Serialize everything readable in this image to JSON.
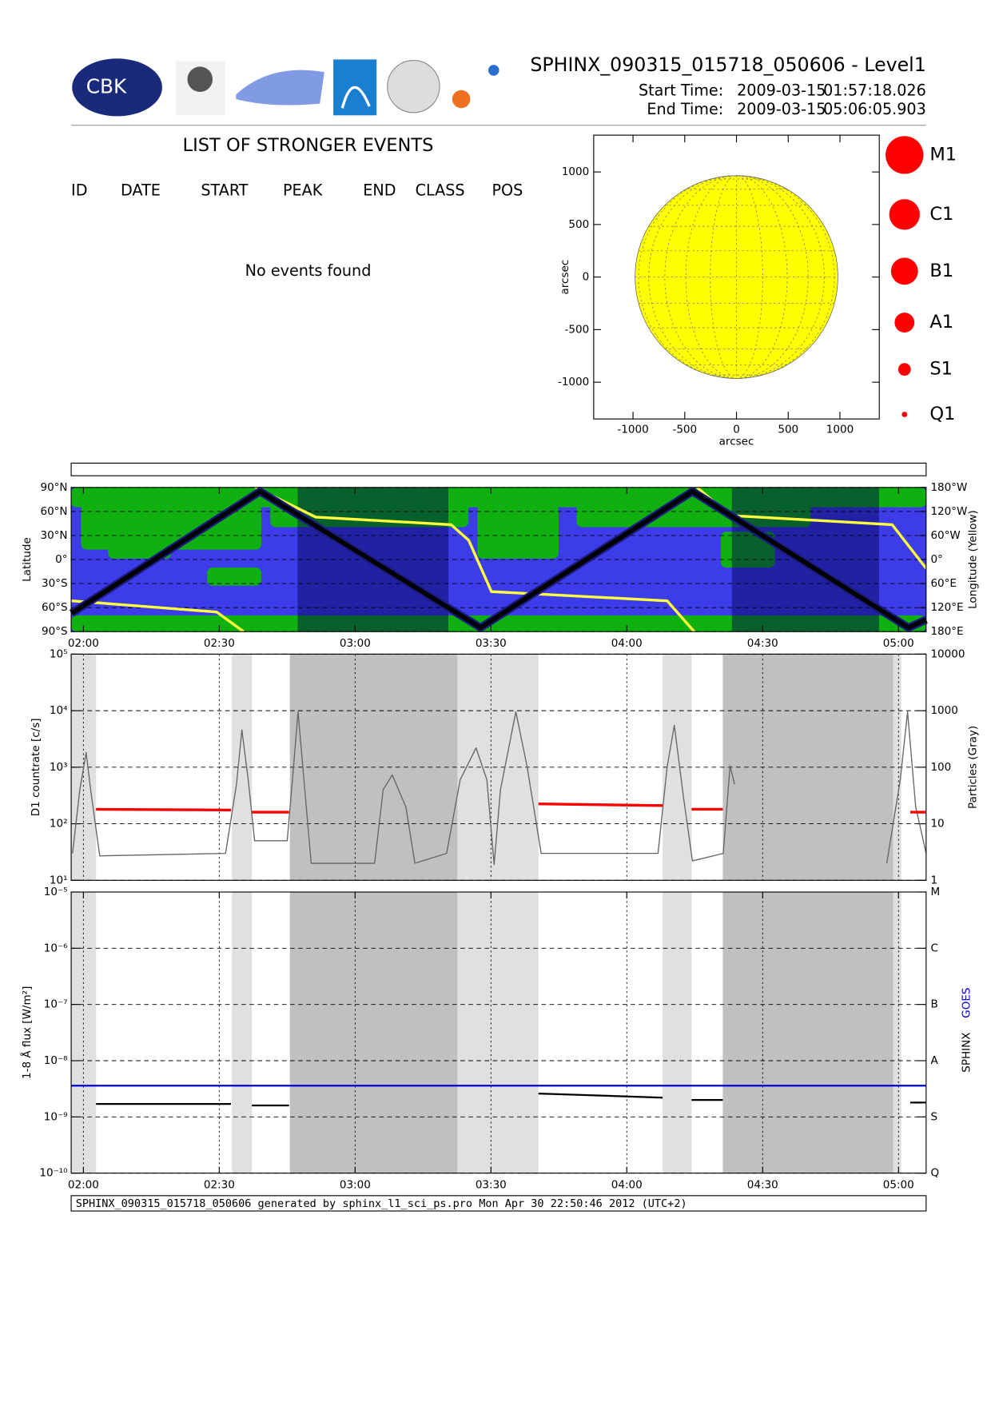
{
  "header": {
    "title": "SPHINX_090315_015718_050606 - Level1",
    "start_label": "Start Time:",
    "start_date": "2009-03-15",
    "start_time": "01:57:18.026",
    "end_label": "End Time:",
    "end_date": "2009-03-15",
    "end_time": "05:06:05.903",
    "logo_text": "CBK"
  },
  "events": {
    "title": "LIST OF STRONGER EVENTS",
    "columns": [
      "ID",
      "DATE",
      "START",
      "PEAK",
      "END",
      "CLASS",
      "POS"
    ],
    "message": "No events found"
  },
  "sun_map": {
    "xlabel": "arcsec",
    "ylabel": "arcsec",
    "xlim": [
      -1380,
      1380
    ],
    "ylim": [
      -1350,
      1350
    ],
    "xticks": [
      -1000,
      -500,
      0,
      500,
      1000
    ],
    "yticks": [
      -1000,
      -500,
      0,
      500,
      1000
    ],
    "solar_radius": 980,
    "color": "#ffff00"
  },
  "flare_classes": [
    "M1",
    "C1",
    "B1",
    "A1",
    "S1",
    "Q1"
  ],
  "time_axis": {
    "xlim": [
      117.3,
      306.1
    ],
    "xticks": [
      {
        "value": 120,
        "label": "02:00"
      },
      {
        "value": 150,
        "label": "02:30"
      },
      {
        "value": 180,
        "label": "03:00"
      },
      {
        "value": 210,
        "label": "03:30"
      },
      {
        "value": 240,
        "label": "04:00"
      },
      {
        "value": 270,
        "label": "04:30"
      },
      {
        "value": 300,
        "label": "05:00"
      }
    ]
  },
  "daylight_shading": {
    "light": [
      [
        117.3,
        122.8
      ],
      [
        152.8,
        157.2
      ],
      [
        202.6,
        220.5
      ],
      [
        247.9,
        254.3
      ],
      [
        298.8,
        300.6
      ]
    ],
    "dark": [
      [
        165.6,
        202.6
      ],
      [
        261.2,
        298.8
      ]
    ]
  },
  "orbit": {
    "ylabel": "Latitude",
    "y2label": "Longitude (Yellow)",
    "ylim": [
      -90,
      90
    ],
    "yticks": [
      {
        "value": 90,
        "label": "90°N"
      },
      {
        "value": 60,
        "label": "60°N"
      },
      {
        "value": 30,
        "label": "30°N"
      },
      {
        "value": 0,
        "label": "0°"
      },
      {
        "value": -30,
        "label": "30°S"
      },
      {
        "value": -60,
        "label": "60°S"
      },
      {
        "value": -90,
        "label": "90°S"
      }
    ],
    "y2lim": [
      -180,
      180
    ],
    "y2ticks": [
      {
        "value": 180,
        "label": "180°W"
      },
      {
        "value": 120,
        "label": "120°W"
      },
      {
        "value": 60,
        "label": "60°W"
      },
      {
        "value": 0,
        "label": "0°"
      },
      {
        "value": -60,
        "label": "60°E"
      },
      {
        "value": -120,
        "label": "120°E"
      },
      {
        "value": -180,
        "label": "180°E"
      }
    ],
    "eclipse": [
      [
        167.3,
        200.6
      ],
      [
        263.2,
        295.7
      ]
    ],
    "track": {
      "color": "#000000",
      "x": [
        117.4,
        159.0,
        207.7,
        254.5,
        302.2,
        306.1
      ],
      "values": [
        -67,
        85,
        -85,
        85,
        -85,
        -75
      ]
    },
    "longitude": {
      "color": "#ffff40",
      "x": [
        117.4,
        149.4,
        155.4,
        156.7,
        158.0,
        171.3,
        201.2,
        205.1,
        210.1,
        248.9,
        254.9,
        255.2,
        255.5,
        262.8,
        298.6,
        306.1
      ],
      "values": [
        -103,
        -131,
        -180,
        null,
        180,
        106,
        87,
        48,
        -80,
        -103,
        -180,
        null,
        180,
        110,
        87,
        -22
      ]
    }
  },
  "d1": {
    "ylabel": "D1 countrate [c/s]",
    "y2label": "Particles (Gray)",
    "ylim": [
      10,
      100000
    ],
    "yticks": [
      {
        "value": 100000,
        "label": "10⁵"
      },
      {
        "value": 10000,
        "label": "10⁴"
      },
      {
        "value": 1000,
        "label": "10³"
      },
      {
        "value": 100,
        "label": "10²"
      },
      {
        "value": 10,
        "label": "10¹"
      }
    ],
    "y2lim": [
      1,
      10000
    ],
    "y2ticks": [
      10000,
      1000,
      100,
      10,
      1
    ],
    "countrate": {
      "color": "#ff0000",
      "x": [
        122.8,
        152.6,
        155.0,
        157.2,
        165.4,
        190.0,
        220.5,
        247.9,
        251.0,
        254.3,
        261.2,
        280.0,
        302.6,
        306.1
      ],
      "values": [
        180,
        175,
        null,
        160,
        160,
        null,
        225,
        210,
        null,
        180,
        180,
        null,
        160,
        160
      ]
    },
    "particles": {
      "color": "#666666",
      "x": [
        117.6,
        119.2,
        120.6,
        121.6,
        123.6,
        151.4,
        153.8,
        155.0,
        156.4,
        157.8,
        165.0,
        166.4,
        167.4,
        170.3,
        184.3,
        186.2,
        188.2,
        191.2,
        193.2,
        200.2,
        203.2,
        206.7,
        209.1,
        210.7,
        212.1,
        215.5,
        218.0,
        221.1,
        246.9,
        248.9,
        250.5,
        252.5,
        254.5,
        261.3,
        262.8,
        263.8,
        280.0,
        297.4,
        300.4,
        302.0,
        303.8,
        306.1
      ],
      "values": [
        3,
        40,
        182,
        40,
        2.7,
        3,
        50,
        457,
        60,
        5,
        5,
        100,
        955,
        2,
        2,
        40,
        73,
        20,
        2,
        3,
        60,
        219,
        60,
        1.9,
        40,
        955,
        100,
        3,
        3,
        100,
        550,
        30,
        2.2,
        3,
        106,
        50,
        null,
        2,
        60,
        955,
        20,
        3
      ]
    }
  },
  "goes": {
    "ylabel": "1-8 Å flux [W/m²]",
    "sphinx_label": "SPHINX",
    "goes_label": "GOES",
    "ylim": [
      1e-10,
      1e-05
    ],
    "yticks": [
      {
        "value": 1e-05,
        "label": "10⁻⁵"
      },
      {
        "value": 1e-06,
        "label": "10⁻⁶"
      },
      {
        "value": 1e-07,
        "label": "10⁻⁷"
      },
      {
        "value": 1e-08,
        "label": "10⁻⁸"
      },
      {
        "value": 1e-09,
        "label": "10⁻⁹"
      },
      {
        "value": 1e-10,
        "label": "10⁻¹⁰"
      }
    ],
    "y2ticks": [
      {
        "value": 1e-05,
        "label": "M"
      },
      {
        "value": 1e-06,
        "label": "C"
      },
      {
        "value": 1e-07,
        "label": "B"
      },
      {
        "value": 1e-08,
        "label": "A"
      },
      {
        "value": 1e-09,
        "label": "S"
      },
      {
        "value": 1e-10,
        "label": "Q"
      }
    ],
    "sphinx": {
      "color": "#000000",
      "x": [
        122.8,
        152.6,
        155.0,
        157.2,
        165.4,
        190.0,
        220.5,
        247.9,
        251.0,
        254.3,
        261.2,
        280.0,
        302.6,
        306.1
      ],
      "values": [
        1.7e-09,
        1.7e-09,
        null,
        1.6e-09,
        1.6e-09,
        null,
        2.6e-09,
        2.2e-09,
        null,
        2e-09,
        2e-09,
        null,
        1.8e-09,
        1.8e-09
      ]
    },
    "goes_flux": {
      "color": "#0000dd",
      "x": [
        117.3,
        306.1
      ],
      "values": [
        3.6e-09,
        3.6e-09
      ]
    }
  },
  "footer": "SPHINX_090315_015718_050606 generated by sphinx_l1_sci_ps.pro Mon Apr 30 22:50:46 2012 (UTC+2)"
}
